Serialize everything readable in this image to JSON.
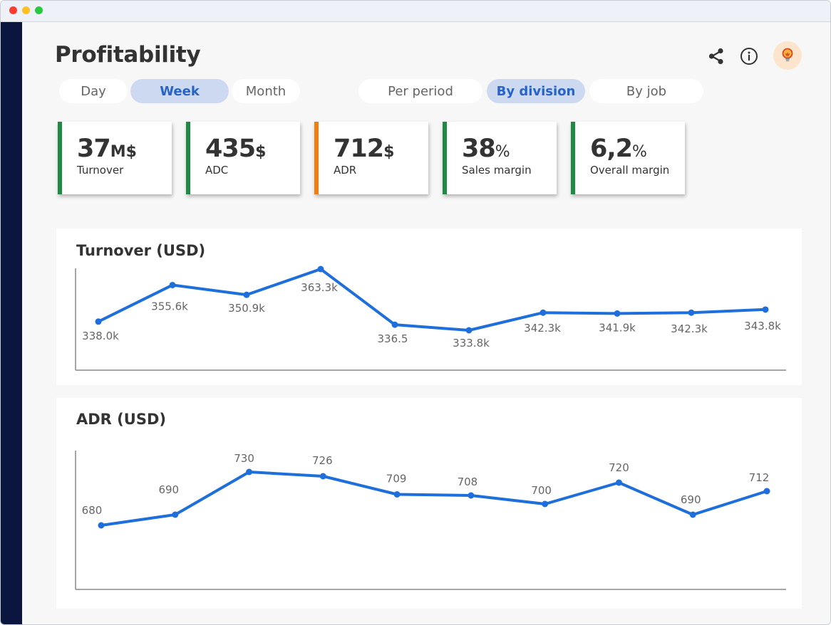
{
  "header": {
    "title": "Profitability",
    "icons": [
      "share-icon",
      "info-icon",
      "lightbulb-icon"
    ]
  },
  "period_tabs": [
    {
      "label": "Day",
      "active": false
    },
    {
      "label": "Week",
      "active": true
    },
    {
      "label": "Month",
      "active": false
    }
  ],
  "view_tabs": [
    {
      "label": "Per period",
      "active": false
    },
    {
      "label": "By division",
      "active": true
    },
    {
      "label": "By job",
      "active": false
    }
  ],
  "kpis": [
    {
      "value": "37",
      "unit": "M$",
      "label": "Turnover"
    },
    {
      "value": "435",
      "unit": "$",
      "label": "ADC"
    },
    {
      "value": "712",
      "unit": "$",
      "label": "ADR"
    },
    {
      "value": "38",
      "unit": "%",
      "label": "Sales margin"
    },
    {
      "value": "6,2",
      "unit": "%",
      "label": "Overall margin"
    }
  ],
  "colors": {
    "accent": "#1e6fdc",
    "kpi_green": "#1f8a44",
    "kpi_orange": "#ef7f13",
    "sidebar": "#0b1640",
    "active_tab_bg": "#cdd9f1",
    "active_tab_text": "#2764c9"
  },
  "chart_data": [
    {
      "type": "line",
      "title": "Turnover (USD)",
      "values": [
        338.0,
        355.6,
        350.9,
        363.3,
        336.5,
        333.8,
        342.3,
        341.9,
        342.3,
        343.8
      ],
      "data_labels": [
        "338.0k",
        "355.6k",
        "350.9k",
        "363.3k",
        "336.5",
        "333.8k",
        "342.3k",
        "341.9k",
        "342.3k",
        "343.8k"
      ],
      "unit": "k USD",
      "grid": false
    },
    {
      "type": "line",
      "title": "ADR (USD)",
      "values": [
        680,
        690,
        730,
        726,
        709,
        708,
        700,
        720,
        690,
        712
      ],
      "data_labels": [
        "680",
        "690",
        "730",
        "726",
        "709",
        "708",
        "700",
        "720",
        "690",
        "712"
      ],
      "grid": false
    }
  ]
}
